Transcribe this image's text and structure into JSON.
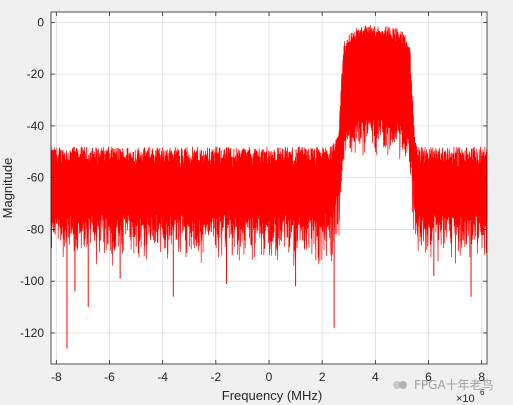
{
  "chart_data": {
    "type": "line",
    "title": "",
    "xlabel": "Frequency (MHz)",
    "ylabel": "Magnitude",
    "x_exponent_label": "×10",
    "x_exponent_power": "6",
    "xlim": [
      -8200000,
      8200000
    ],
    "ylim": [
      -132,
      4
    ],
    "x_ticks": [
      -8000000,
      -6000000,
      -4000000,
      -2000000,
      0,
      2000000,
      4000000,
      6000000,
      8000000
    ],
    "x_tick_labels": [
      "-8",
      "-6",
      "-4",
      "-2",
      "0",
      "2",
      "4",
      "6",
      "8"
    ],
    "y_ticks": [
      0,
      -20,
      -40,
      -60,
      -80,
      -100,
      -120
    ],
    "y_tick_labels": [
      "0",
      "-20",
      "-40",
      "-60",
      "-80",
      "-100",
      "-120"
    ],
    "grid": true,
    "series": [
      {
        "color": "#ff0000",
        "x": [
          -8200000,
          -8000000,
          -7600000,
          -7000000,
          -6000000,
          -5000000,
          -4000000,
          -3000000,
          -2000000,
          -1000000,
          0,
          1000000,
          2000000,
          2400000,
          2600000,
          2800000,
          3000000,
          3300000,
          3600000,
          4000000,
          4400000,
          4800000,
          5100000,
          5300000,
          5500000,
          5700000,
          6000000,
          7000000,
          8000000,
          8200000
        ],
        "upper": [
          -48,
          -48,
          -48,
          -48,
          -48,
          -48,
          -48,
          -48,
          -48,
          -48,
          -48,
          -48,
          -48,
          -47,
          -44,
          -8,
          -4,
          -2,
          -1,
          -1,
          -1,
          -2,
          -4,
          -10,
          -46,
          -48,
          -48,
          -48,
          -48,
          -48
        ],
        "typical_max": [
          -56,
          -56,
          -56,
          -56,
          -56,
          -56,
          -56,
          -56,
          -56,
          -56,
          -56,
          -56,
          -56,
          -55,
          -50,
          -16,
          -10,
          -8,
          -7,
          -7,
          -7,
          -8,
          -10,
          -16,
          -52,
          -56,
          -56,
          -56,
          -56,
          -56
        ],
        "typical_min": [
          -74,
          -74,
          -74,
          -74,
          -74,
          -74,
          -74,
          -74,
          -74,
          -74,
          -74,
          -74,
          -74,
          -72,
          -62,
          -46,
          -40,
          -38,
          -37,
          -37,
          -37,
          -38,
          -40,
          -46,
          -70,
          -74,
          -74,
          -74,
          -74,
          -74
        ],
        "lower": [
          -95,
          -95,
          -95,
          -95,
          -95,
          -95,
          -95,
          -95,
          -95,
          -95,
          -95,
          -95,
          -95,
          -95,
          -90,
          -62,
          -56,
          -54,
          -54,
          -54,
          -54,
          -54,
          -56,
          -62,
          -90,
          -95,
          -95,
          -95,
          -95,
          -95
        ],
        "spikes": [
          {
            "x": -7600000,
            "y": -126
          },
          {
            "x": -7300000,
            "y": -104
          },
          {
            "x": -6800000,
            "y": -110
          },
          {
            "x": -5600000,
            "y": -99
          },
          {
            "x": -3600000,
            "y": -106
          },
          {
            "x": -1600000,
            "y": -101
          },
          {
            "x": 1000000,
            "y": -102
          },
          {
            "x": 2450000,
            "y": -118
          },
          {
            "x": 6200000,
            "y": -98
          },
          {
            "x": 7600000,
            "y": -106
          }
        ]
      }
    ]
  },
  "watermark": {
    "text": "FPGA十年老鸟"
  }
}
